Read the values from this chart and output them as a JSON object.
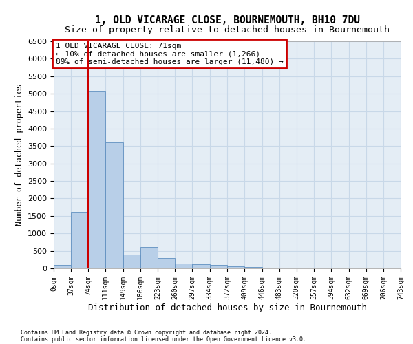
{
  "title": "1, OLD VICARAGE CLOSE, BOURNEMOUTH, BH10 7DU",
  "subtitle": "Size of property relative to detached houses in Bournemouth",
  "xlabel": "Distribution of detached houses by size in Bournemouth",
  "ylabel": "Number of detached properties",
  "footnote1": "Contains HM Land Registry data © Crown copyright and database right 2024.",
  "footnote2": "Contains public sector information licensed under the Open Government Licence v3.0.",
  "annotation_title": "1 OLD VICARAGE CLOSE: 71sqm",
  "annotation_line1": "← 10% of detached houses are smaller (1,266)",
  "annotation_line2": "89% of semi-detached houses are larger (11,480) →",
  "bar_edges": [
    0,
    37,
    74,
    111,
    149,
    186,
    223,
    260,
    297,
    334,
    372,
    409,
    446,
    483,
    520,
    557,
    594,
    632,
    669,
    706,
    743
  ],
  "bar_heights": [
    100,
    1620,
    5080,
    3600,
    400,
    620,
    300,
    130,
    120,
    95,
    50,
    45,
    25,
    25,
    20,
    15,
    8,
    8,
    5,
    3
  ],
  "bar_color": "#b8cfe8",
  "bar_edge_color": "#6090c0",
  "vline_color": "#cc0000",
  "vline_x": 74,
  "annotation_box_color": "#cc0000",
  "ylim": [
    0,
    6500
  ],
  "yticks": [
    0,
    500,
    1000,
    1500,
    2000,
    2500,
    3000,
    3500,
    4000,
    4500,
    5000,
    5500,
    6000,
    6500
  ],
  "tick_labels": [
    "0sqm",
    "37sqm",
    "74sqm",
    "111sqm",
    "149sqm",
    "186sqm",
    "223sqm",
    "260sqm",
    "297sqm",
    "334sqm",
    "372sqm",
    "409sqm",
    "446sqm",
    "483sqm",
    "520sqm",
    "557sqm",
    "594sqm",
    "632sqm",
    "669sqm",
    "706sqm",
    "743sqm"
  ],
  "grid_color": "#c8d8e8",
  "bg_color": "#e4edf5",
  "title_fontsize": 10.5,
  "subtitle_fontsize": 9.5,
  "tick_label_fontsize": 7,
  "xlabel_fontsize": 9,
  "ylabel_fontsize": 8.5
}
